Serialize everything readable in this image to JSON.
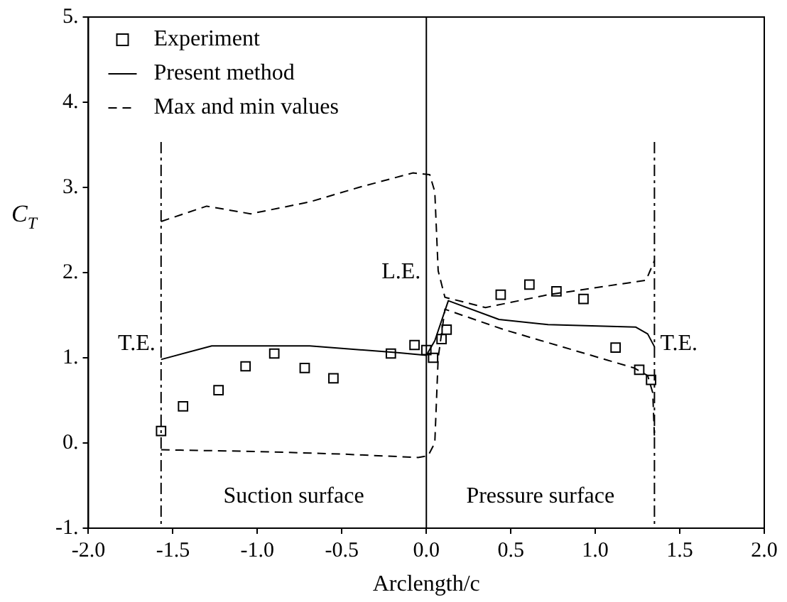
{
  "chart_data": {
    "type": "line",
    "xlabel": "Arclength/c",
    "ylabel": "C$_{T}$",
    "xlim": [
      -2,
      2
    ],
    "ylim": [
      -1,
      5
    ],
    "xticks": [
      {
        "value": -2,
        "label": "-2.0"
      },
      {
        "value": -1.5,
        "label": "-1.5"
      },
      {
        "value": -1,
        "label": "-1.0"
      },
      {
        "value": -0.5,
        "label": "-0.5"
      },
      {
        "value": 0,
        "label": "0.0"
      },
      {
        "value": 0.5,
        "label": "0.5"
      },
      {
        "value": 1,
        "label": "1.0"
      },
      {
        "value": 1.5,
        "label": "1.5"
      },
      {
        "value": 2,
        "label": "2.0"
      }
    ],
    "yticks": [
      {
        "value": -1,
        "label": "-1."
      },
      {
        "value": 0,
        "label": "0."
      },
      {
        "value": 1,
        "label": "1."
      },
      {
        "value": 2,
        "label": "2."
      },
      {
        "value": 3,
        "label": "3."
      },
      {
        "value": 4,
        "label": "4."
      },
      {
        "value": 5,
        "label": "5."
      }
    ],
    "grid": false,
    "legend": "top left",
    "series": [
      {
        "name": "Experiment",
        "type": "scatter",
        "marker": "square",
        "color": "#000000",
        "x": [
          -1.57,
          -1.44,
          -1.23,
          -1.07,
          -0.9,
          -0.72,
          -0.55,
          -0.21,
          -0.07,
          0.0,
          0.04,
          0.09,
          0.12,
          0.44,
          0.61,
          0.77,
          0.93,
          1.12,
          1.26,
          1.33
        ],
        "values": [
          0.14,
          0.43,
          0.62,
          0.9,
          1.05,
          0.88,
          0.76,
          1.05,
          1.15,
          1.09,
          1.0,
          1.22,
          1.33,
          1.74,
          1.86,
          1.78,
          1.69,
          1.12,
          0.86,
          0.74
        ]
      },
      {
        "name": "Present method",
        "marker": "none",
        "line_style": "solid",
        "color": "#000000",
        "x": [
          -1.57,
          -1.27,
          -0.69,
          -0.17,
          0.0,
          0.05,
          0.13,
          0.43,
          0.72,
          1.24,
          1.31,
          1.35
        ],
        "values": [
          0.98,
          1.14,
          1.14,
          1.06,
          1.03,
          1.2,
          1.67,
          1.45,
          1.39,
          1.36,
          1.28,
          1.13
        ]
      },
      {
        "name": "Max and min values",
        "marker": "none",
        "line_style": "dashed",
        "color": "#000000",
        "x": [
          -1.57,
          -1.3,
          -1.04,
          -0.69,
          -0.4,
          -0.08,
          0.02,
          0.05,
          0.07,
          0.11,
          0.35,
          0.72,
          1.3,
          1.35
        ],
        "values": [
          2.6,
          2.78,
          2.69,
          2.83,
          3.0,
          3.17,
          3.15,
          2.95,
          2.02,
          1.71,
          1.59,
          1.74,
          1.91,
          2.14
        ]
      },
      {
        "marker": "none",
        "line_style": "dashed",
        "color": "#000000",
        "x": [
          -1.57,
          -1.0,
          -0.5,
          -0.05,
          0.01,
          0.05,
          0.07,
          0.11,
          0.46,
          1.23,
          1.31,
          1.34,
          1.35
        ],
        "values": [
          -0.08,
          -0.1,
          -0.13,
          -0.17,
          -0.15,
          0.0,
          1.0,
          1.57,
          1.33,
          0.88,
          0.79,
          0.59,
          0.07
        ]
      }
    ],
    "ref_lines": [
      {
        "axis": "x",
        "value": -1.57,
        "label": "T.E.",
        "line_style": "dashdot",
        "color": "#000000"
      },
      {
        "axis": "x",
        "value": 0,
        "label": "L.E.",
        "line_style": "solid",
        "color": "#000000"
      },
      {
        "axis": "x",
        "value": 1.35,
        "label": "T.E.",
        "line_style": "dashdot",
        "color": "#000000"
      }
    ],
    "annotations": [
      "Suction surface",
      "Pressure surface"
    ]
  }
}
